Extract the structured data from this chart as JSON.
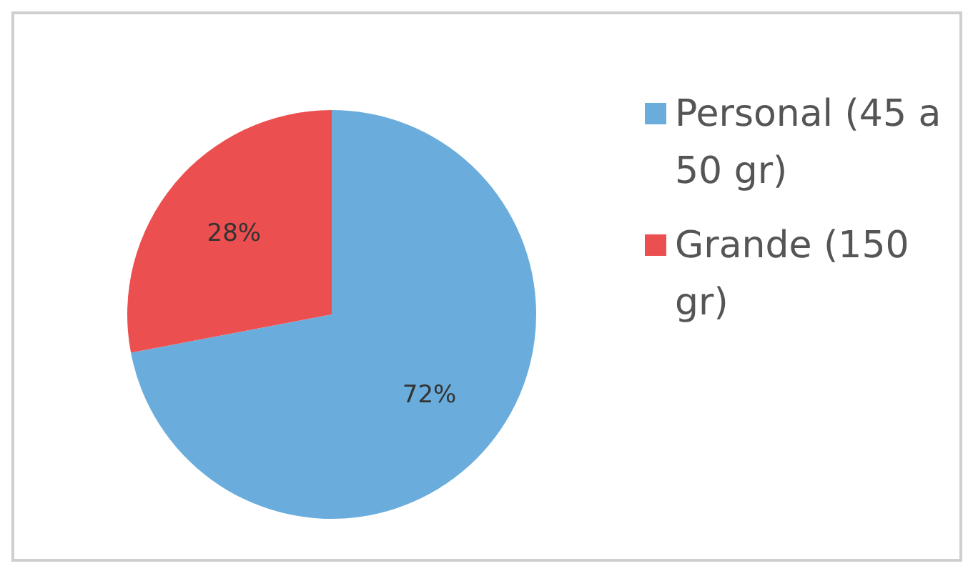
{
  "chart_data": {
    "type": "pie",
    "categories": [
      "Personal (45 a 50 gr)",
      "Grande (150 gr)"
    ],
    "values": [
      72,
      28
    ],
    "colors": [
      "#6aaddc",
      "#ec4f4f"
    ],
    "value_labels": [
      "72%",
      "28%"
    ],
    "legend": "right"
  }
}
